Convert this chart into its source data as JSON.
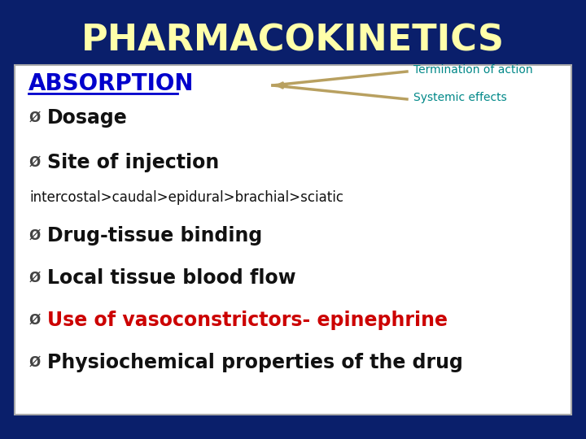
{
  "title": "PHARMACOKINETICS",
  "title_color": "#FFFFAA",
  "bg_color": "#0A1F6B",
  "panel_bg": "#FFFFFF",
  "absorption_text": "ABSORPTION",
  "absorption_color": "#0000CC",
  "bullet_symbol": "Ø",
  "bullet_color": "#444444",
  "bullet_items": [
    {
      "text": "Dosage",
      "color": "#111111",
      "bold": true
    },
    {
      "text": "Site of injection",
      "color": "#111111",
      "bold": true
    }
  ],
  "intercostal_text": "intercostal>caudal>epidural>brachial>sciatic",
  "intercostal_color": "#111111",
  "bullet_items2": [
    {
      "text": "Drug-tissue binding",
      "color": "#111111",
      "bold": true
    },
    {
      "text": "Local tissue blood flow",
      "color": "#111111",
      "bold": true
    },
    {
      "text": "Use of vasoconstrictors- epinephrine",
      "color": "#CC0000",
      "bold": true
    },
    {
      "text": "Physiochemical properties of the drug",
      "color": "#111111",
      "bold": true
    }
  ],
  "termination_text": "Termination of action",
  "termination_color": "#008888",
  "systemic_text": "Systemic effects",
  "systemic_color": "#008888",
  "arrow_color": "#B8A060"
}
